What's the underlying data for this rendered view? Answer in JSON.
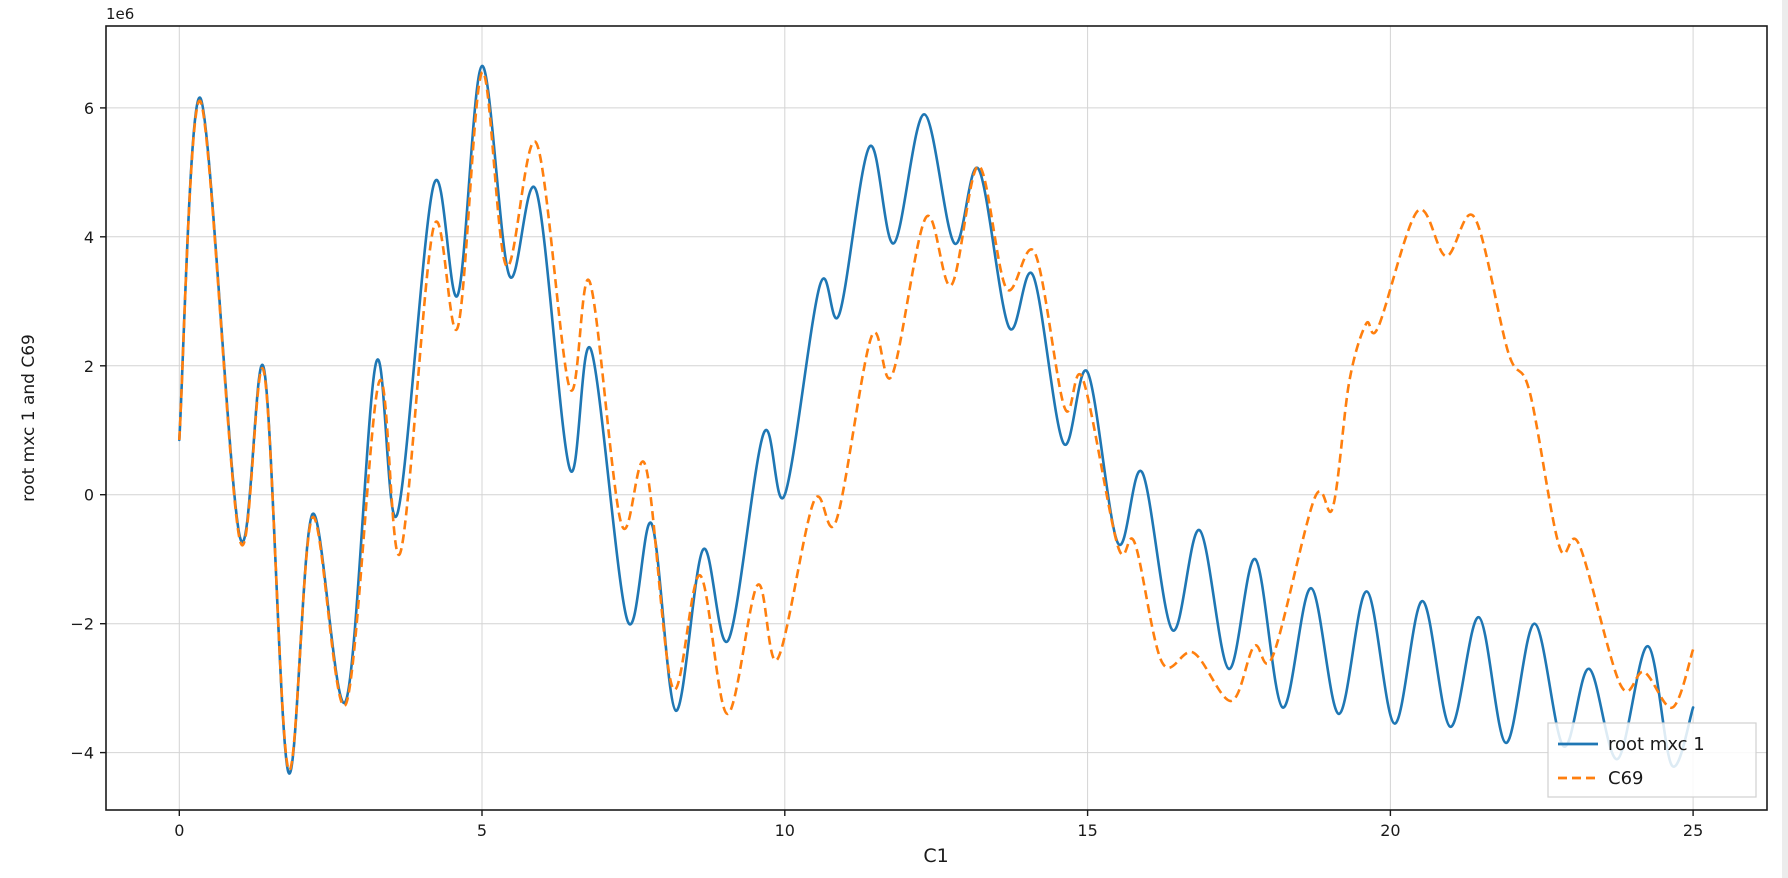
{
  "figure": {
    "offset_label": "1e6"
  },
  "chart_data": {
    "type": "line",
    "title": "",
    "xlabel": "C1",
    "ylabel": "root mxc 1 and C69",
    "y_unit_multiplier": "1e6",
    "xlim": [
      -1.21,
      26.22
    ],
    "ylim": [
      -4.89,
      7.27
    ],
    "x_ticks": [
      0,
      5,
      10,
      15,
      20,
      25
    ],
    "x_tick_labels": [
      "0",
      "5",
      "10",
      "15",
      "20",
      "25"
    ],
    "y_ticks": [
      -4,
      -2,
      0,
      2,
      4,
      6
    ],
    "y_tick_labels": [
      "−4",
      "−2",
      "0",
      "2",
      "4",
      "6"
    ],
    "grid": true,
    "legend_position": "lower right",
    "colors": {
      "grid": "#d4d4d4",
      "axis": "#1a1a1a",
      "background": "#ffffff"
    },
    "series": [
      {
        "name": "root mxc 1",
        "color": "#1f77b4",
        "style": "solid",
        "points": [
          [
            0,
            0.85
          ],
          [
            0.35,
            6.15
          ],
          [
            1.0,
            -0.65
          ],
          [
            1.4,
            1.95
          ],
          [
            1.8,
            -4.3
          ],
          [
            2.2,
            -0.3
          ],
          [
            2.75,
            -3.2
          ],
          [
            3.25,
            2.05
          ],
          [
            3.6,
            -0.3
          ],
          [
            4.2,
            4.8
          ],
          [
            4.6,
            3.1
          ],
          [
            5.0,
            6.65
          ],
          [
            5.45,
            3.4
          ],
          [
            5.9,
            4.7
          ],
          [
            6.45,
            0.4
          ],
          [
            6.8,
            2.25
          ],
          [
            7.4,
            -1.95
          ],
          [
            7.8,
            -0.45
          ],
          [
            8.2,
            -3.35
          ],
          [
            8.65,
            -0.85
          ],
          [
            9.07,
            -2.25
          ],
          [
            9.65,
            0.95
          ],
          [
            10.0,
            0.0
          ],
          [
            10.58,
            3.25
          ],
          [
            10.9,
            2.8
          ],
          [
            11.4,
            5.4
          ],
          [
            11.8,
            3.9
          ],
          [
            12.3,
            5.9
          ],
          [
            12.8,
            3.9
          ],
          [
            13.2,
            5.05
          ],
          [
            13.7,
            2.6
          ],
          [
            14.1,
            3.4
          ],
          [
            14.6,
            0.8
          ],
          [
            15.0,
            1.9
          ],
          [
            15.5,
            -0.75
          ],
          [
            15.9,
            0.35
          ],
          [
            16.4,
            -2.1
          ],
          [
            16.85,
            -0.55
          ],
          [
            17.33,
            -2.7
          ],
          [
            17.77,
            -1.0
          ],
          [
            18.22,
            -3.3
          ],
          [
            18.69,
            -1.45
          ],
          [
            19.15,
            -3.4
          ],
          [
            19.61,
            -1.5
          ],
          [
            20.07,
            -3.55
          ],
          [
            20.53,
            -1.65
          ],
          [
            20.99,
            -3.6
          ],
          [
            21.46,
            -1.9
          ],
          [
            21.91,
            -3.85
          ],
          [
            22.38,
            -2.0
          ],
          [
            22.86,
            -3.9
          ],
          [
            23.28,
            -2.7
          ],
          [
            23.75,
            -4.1
          ],
          [
            24.25,
            -2.35
          ],
          [
            24.65,
            -4.2
          ],
          [
            25.0,
            -3.3
          ]
        ]
      },
      {
        "name": "C69",
        "color": "#ff7f0e",
        "style": "dashed",
        "points": [
          [
            0,
            0.85
          ],
          [
            0.35,
            6.1
          ],
          [
            1.0,
            -0.7
          ],
          [
            1.4,
            1.9
          ],
          [
            1.8,
            -4.25
          ],
          [
            2.2,
            -0.35
          ],
          [
            2.75,
            -3.25
          ],
          [
            3.3,
            1.75
          ],
          [
            3.65,
            -0.9
          ],
          [
            4.2,
            4.15
          ],
          [
            4.6,
            2.6
          ],
          [
            5.0,
            6.55
          ],
          [
            5.4,
            3.55
          ],
          [
            5.9,
            5.45
          ],
          [
            6.45,
            1.65
          ],
          [
            6.78,
            3.3
          ],
          [
            7.3,
            -0.45
          ],
          [
            7.7,
            0.45
          ],
          [
            8.15,
            -3.0
          ],
          [
            8.6,
            -1.25
          ],
          [
            9.05,
            -3.4
          ],
          [
            9.55,
            -1.4
          ],
          [
            9.88,
            -2.55
          ],
          [
            10.48,
            -0.1
          ],
          [
            10.85,
            -0.4
          ],
          [
            11.43,
            2.45
          ],
          [
            11.77,
            1.85
          ],
          [
            12.33,
            4.3
          ],
          [
            12.75,
            3.25
          ],
          [
            13.2,
            5.1
          ],
          [
            13.66,
            3.2
          ],
          [
            14.13,
            3.75
          ],
          [
            14.62,
            1.35
          ],
          [
            14.92,
            1.8
          ],
          [
            15.5,
            -0.8
          ],
          [
            15.78,
            -0.75
          ],
          [
            16.23,
            -2.6
          ],
          [
            16.75,
            -2.45
          ],
          [
            17.37,
            -3.2
          ],
          [
            17.75,
            -2.35
          ],
          [
            18.06,
            -2.5
          ],
          [
            18.75,
            -0.05
          ],
          [
            19.05,
            -0.2
          ],
          [
            19.32,
            1.75
          ],
          [
            19.6,
            2.65
          ],
          [
            19.8,
            2.6
          ],
          [
            20.45,
            4.4
          ],
          [
            20.92,
            3.7
          ],
          [
            21.39,
            4.3
          ],
          [
            21.95,
            2.2
          ],
          [
            22.3,
            1.6
          ],
          [
            22.79,
            -0.8
          ],
          [
            23.12,
            -0.78
          ],
          [
            23.8,
            -2.95
          ],
          [
            24.19,
            -2.75
          ],
          [
            24.66,
            -3.3
          ],
          [
            25.0,
            -2.4
          ]
        ]
      }
    ]
  }
}
